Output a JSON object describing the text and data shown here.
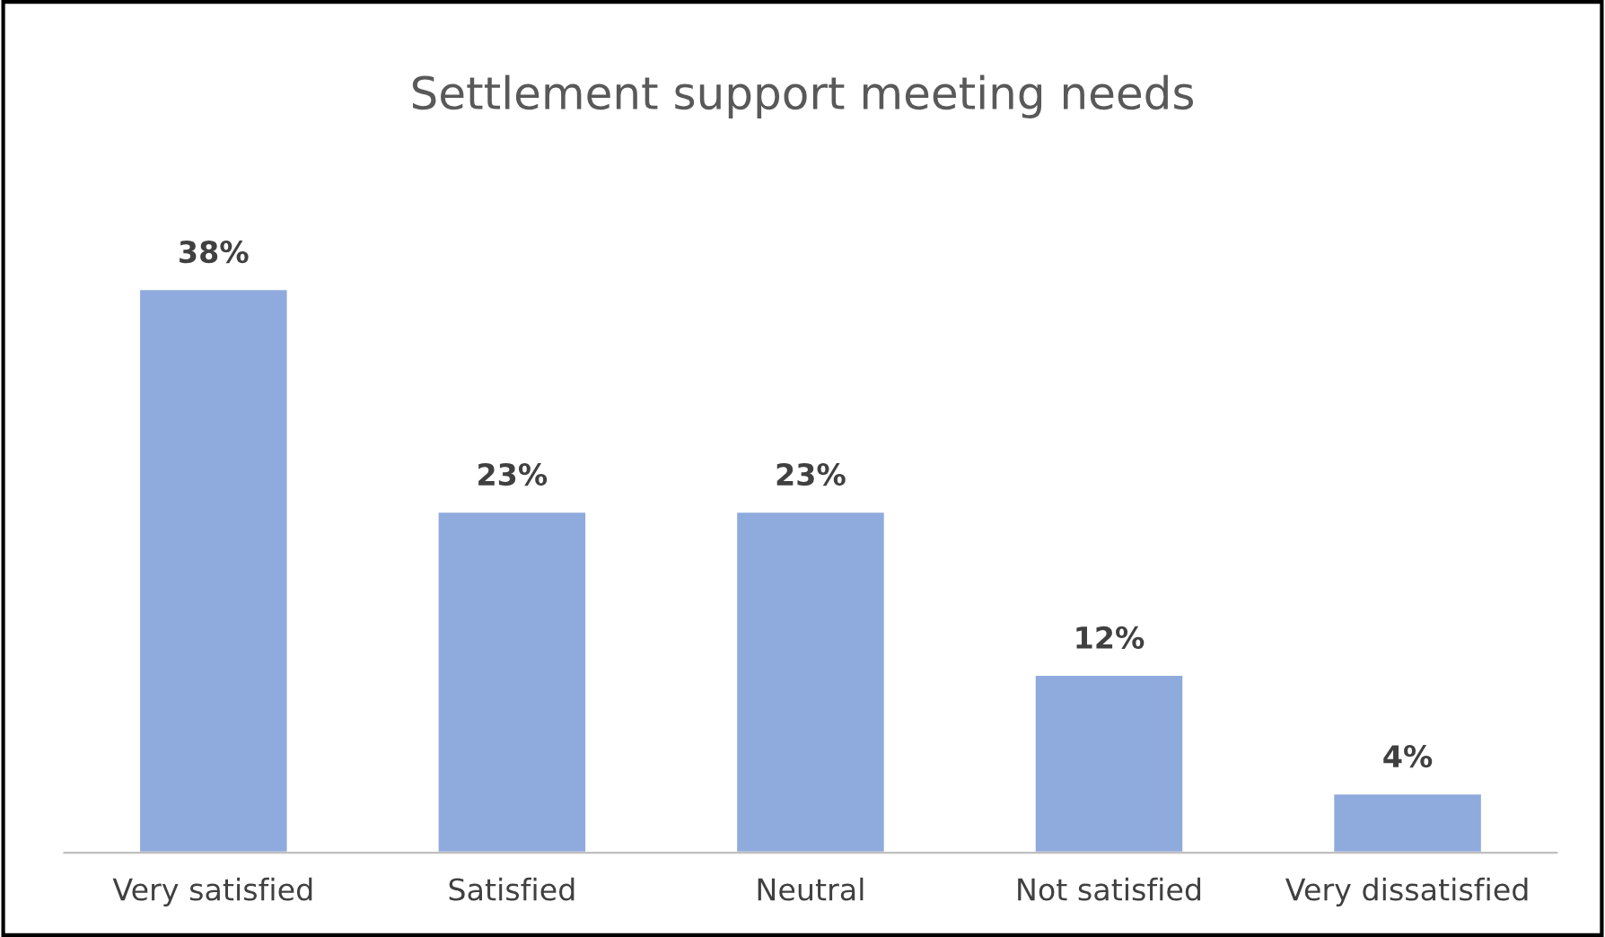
{
  "chart_data": {
    "type": "bar",
    "title": "Settlement support meeting needs",
    "categories": [
      "Very satisfied",
      "Satisfied",
      "Neutral",
      "Not satisfied",
      "Very dissatisfied"
    ],
    "values": [
      38,
      23,
      23,
      12,
      4
    ],
    "value_labels": [
      "38%",
      "23%",
      "23%",
      "12%",
      "4%"
    ],
    "color": "#8faadc",
    "grid": false,
    "legend": false
  }
}
